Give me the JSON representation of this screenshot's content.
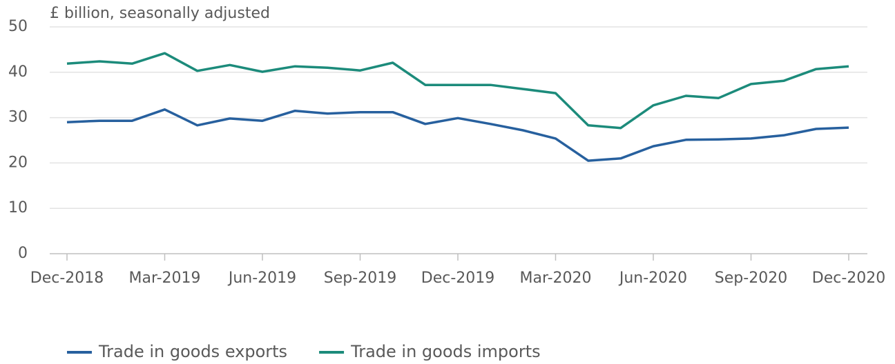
{
  "chart_data": {
    "type": "line",
    "ylabel": "£ billion, seasonally adjusted",
    "categories": [
      "Dec-2018",
      null,
      null,
      "Mar-2019",
      null,
      null,
      "Jun-2019",
      null,
      null,
      "Sep-2019",
      null,
      null,
      "Dec-2019",
      null,
      null,
      "Mar-2020",
      null,
      null,
      "Jun-2020",
      null,
      null,
      "Sep-2020",
      null,
      null,
      "Dec-2020"
    ],
    "series": [
      {
        "name": "Trade in goods exports",
        "color": "#27609e",
        "values": [
          29.0,
          29.3,
          29.3,
          31.8,
          28.3,
          29.8,
          29.3,
          31.5,
          30.9,
          31.2,
          31.2,
          28.6,
          29.9,
          28.6,
          27.2,
          25.4,
          20.5,
          21.0,
          23.7,
          25.1,
          25.2,
          25.4,
          26.1,
          27.5,
          27.8
        ]
      },
      {
        "name": "Trade in goods imports",
        "color": "#1c8b7b",
        "values": [
          41.9,
          42.4,
          41.9,
          44.2,
          40.3,
          41.6,
          40.1,
          41.3,
          41.0,
          40.4,
          42.1,
          37.2,
          37.2,
          37.2,
          36.3,
          35.4,
          28.3,
          27.7,
          32.7,
          34.8,
          34.3,
          37.4,
          38.1,
          40.7,
          41.3
        ]
      }
    ],
    "ylim": [
      0,
      50
    ],
    "yticks": [
      0,
      10,
      20,
      30,
      40,
      50
    ],
    "grid": true,
    "legend": "bottom"
  }
}
